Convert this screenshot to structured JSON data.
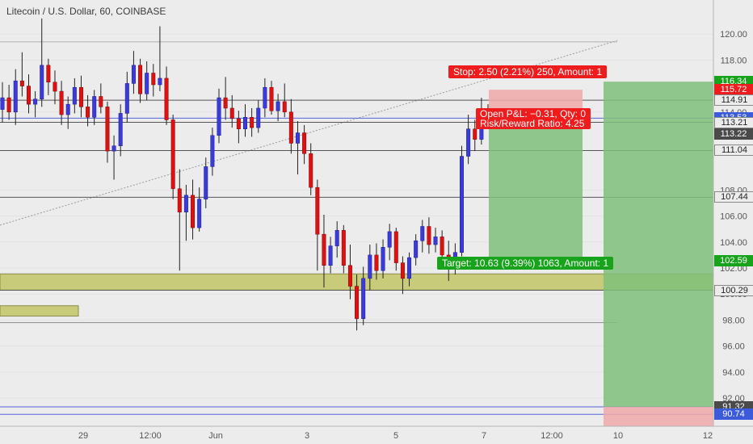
{
  "header": {
    "title": "Litecoin / U.S. Dollar, 60, COINBASE"
  },
  "chart_data": {
    "type": "candlestick",
    "symbol": "Litecoin / U.S. Dollar",
    "interval": "60",
    "exchange": "COINBASE",
    "ylim": [
      90.2,
      122.0
    ],
    "price_ticks": [
      "120.00",
      "118.00",
      "114.00",
      "108.00",
      "106.00",
      "104.00",
      "102.00",
      "100.00",
      "98.00",
      "96.00",
      "94.00",
      "92.00"
    ],
    "time_ticks": [
      "29",
      "12:00",
      "Jun",
      "3",
      "5",
      "7",
      "12:00",
      "10",
      "12"
    ],
    "price_tags": [
      {
        "text": "116.34",
        "price": 116.34,
        "bg": "#17a31b",
        "fg": "#ffffff"
      },
      {
        "text": "115.72",
        "price": 115.72,
        "bg": "#ee1c1c",
        "fg": "#ffffff"
      },
      {
        "text": "114.91",
        "price": 114.91,
        "bg": "#ececec",
        "fg": "#222222"
      },
      {
        "text": "113.53",
        "price": 113.53,
        "bg": "#3b5bdb",
        "fg": "#ffffff"
      },
      {
        "text": "15:28",
        "price": 112.58,
        "bg": "#3b5bdb",
        "fg": "#ffffff"
      },
      {
        "text": "113.21",
        "price": 113.21,
        "bg": "#ececec",
        "fg": "#222222"
      },
      {
        "text": "113.22",
        "price": 112.3,
        "bg": "#4a4a4a",
        "fg": "#ffffff"
      },
      {
        "text": "111.04",
        "price": 111.04,
        "bg": "#ececec",
        "fg": "#222222"
      },
      {
        "text": "107.44",
        "price": 107.44,
        "bg": "#ececec",
        "fg": "#222222"
      },
      {
        "text": "102.59",
        "price": 102.59,
        "bg": "#17a31b",
        "fg": "#ffffff"
      },
      {
        "text": "100.29",
        "price": 100.29,
        "bg": "#ececec",
        "fg": "#222222"
      },
      {
        "text": "91.32",
        "price": 91.32,
        "bg": "#4a4a4a",
        "fg": "#ffffff"
      },
      {
        "text": "90.74",
        "price": 90.74,
        "bg": "#3b5bdb",
        "fg": "#ffffff"
      }
    ],
    "horizontal_lines": [
      {
        "price": 114.91,
        "color": "#555555"
      },
      {
        "price": 113.53,
        "color": "#5566dd"
      },
      {
        "price": 113.21,
        "color": "#555555"
      },
      {
        "price": 111.04,
        "color": "#555555"
      },
      {
        "price": 107.44,
        "color": "#555555"
      },
      {
        "price": 100.29,
        "color": "#555555"
      },
      {
        "price": 91.32,
        "color": "#5566dd"
      },
      {
        "price": 90.74,
        "color": "#5566dd"
      }
    ],
    "support_zone": {
      "top": 101.55,
      "bottom": 100.3,
      "color": "#c8cc7a"
    },
    "position": {
      "entry": 113.21,
      "stop": 115.72,
      "target": 102.59,
      "stop_label": "Stop: 2.50 (2.21%) 250, Amount: 1",
      "pnl_label_1": "Open P&L: −0.31, Qty: 0",
      "pnl_label_2": "Risk/Reward Ratio: 4.25",
      "target_label": "Target: 10.63 (9.39%) 1063, Amount: 1",
      "profit_color": "#7fbf7a",
      "loss_color": "#f1a9a9"
    },
    "candles": [
      {
        "o": 114.2,
        "h": 116.3,
        "l": 113.2,
        "c": 115.1
      },
      {
        "o": 115.1,
        "h": 116.1,
        "l": 113.4,
        "c": 114.0
      },
      {
        "o": 114.0,
        "h": 117.3,
        "l": 113.0,
        "c": 116.4
      },
      {
        "o": 116.4,
        "h": 118.6,
        "l": 115.2,
        "c": 116.0
      },
      {
        "o": 116.0,
        "h": 116.9,
        "l": 113.9,
        "c": 114.6
      },
      {
        "o": 114.6,
        "h": 115.6,
        "l": 113.6,
        "c": 115.0
      },
      {
        "o": 115.0,
        "h": 121.2,
        "l": 114.4,
        "c": 117.6
      },
      {
        "o": 117.6,
        "h": 118.1,
        "l": 115.3,
        "c": 116.3
      },
      {
        "o": 116.3,
        "h": 117.2,
        "l": 114.6,
        "c": 115.6
      },
      {
        "o": 115.6,
        "h": 116.4,
        "l": 113.0,
        "c": 113.8
      },
      {
        "o": 113.8,
        "h": 115.2,
        "l": 112.7,
        "c": 114.6
      },
      {
        "o": 114.6,
        "h": 116.6,
        "l": 113.9,
        "c": 115.9
      },
      {
        "o": 115.9,
        "h": 116.8,
        "l": 113.6,
        "c": 114.4
      },
      {
        "o": 114.4,
        "h": 115.3,
        "l": 112.9,
        "c": 113.6
      },
      {
        "o": 113.6,
        "h": 115.7,
        "l": 113.0,
        "c": 115.2
      },
      {
        "o": 115.2,
        "h": 116.2,
        "l": 113.9,
        "c": 114.4
      },
      {
        "o": 114.4,
        "h": 114.8,
        "l": 110.1,
        "c": 111.0
      },
      {
        "o": 111.0,
        "h": 112.2,
        "l": 108.8,
        "c": 111.4
      },
      {
        "o": 111.4,
        "h": 114.6,
        "l": 110.6,
        "c": 113.9
      },
      {
        "o": 113.9,
        "h": 117.1,
        "l": 113.2,
        "c": 116.2
      },
      {
        "o": 116.2,
        "h": 118.7,
        "l": 115.4,
        "c": 117.6
      },
      {
        "o": 117.6,
        "h": 118.1,
        "l": 114.7,
        "c": 115.4
      },
      {
        "o": 115.4,
        "h": 117.9,
        "l": 114.9,
        "c": 117.0
      },
      {
        "o": 117.0,
        "h": 117.7,
        "l": 115.2,
        "c": 116.1
      },
      {
        "o": 116.1,
        "h": 120.6,
        "l": 115.6,
        "c": 116.6
      },
      {
        "o": 116.6,
        "h": 117.5,
        "l": 113.0,
        "c": 113.4
      },
      {
        "o": 113.4,
        "h": 113.8,
        "l": 107.3,
        "c": 108.1
      },
      {
        "o": 108.1,
        "h": 109.6,
        "l": 101.8,
        "c": 106.3
      },
      {
        "o": 106.3,
        "h": 108.4,
        "l": 104.1,
        "c": 107.6
      },
      {
        "o": 107.6,
        "h": 108.8,
        "l": 104.2,
        "c": 105.1
      },
      {
        "o": 105.1,
        "h": 108.2,
        "l": 104.8,
        "c": 107.3
      },
      {
        "o": 107.3,
        "h": 110.5,
        "l": 106.6,
        "c": 109.8
      },
      {
        "o": 109.8,
        "h": 112.8,
        "l": 109.1,
        "c": 112.2
      },
      {
        "o": 112.2,
        "h": 115.8,
        "l": 111.6,
        "c": 115.1
      },
      {
        "o": 115.1,
        "h": 116.7,
        "l": 113.4,
        "c": 114.3
      },
      {
        "o": 114.3,
        "h": 115.3,
        "l": 112.8,
        "c": 113.5
      },
      {
        "o": 113.5,
        "h": 114.1,
        "l": 111.6,
        "c": 112.7
      },
      {
        "o": 112.7,
        "h": 114.6,
        "l": 112.1,
        "c": 113.6
      },
      {
        "o": 113.6,
        "h": 114.3,
        "l": 112.1,
        "c": 112.8
      },
      {
        "o": 112.8,
        "h": 114.9,
        "l": 112.4,
        "c": 114.3
      },
      {
        "o": 114.3,
        "h": 116.6,
        "l": 113.6,
        "c": 115.9
      },
      {
        "o": 115.9,
        "h": 116.4,
        "l": 113.8,
        "c": 114.1
      },
      {
        "o": 114.1,
        "h": 115.4,
        "l": 113.3,
        "c": 114.8
      },
      {
        "o": 114.8,
        "h": 116.2,
        "l": 113.6,
        "c": 114.0
      },
      {
        "o": 114.0,
        "h": 115.0,
        "l": 110.8,
        "c": 111.6
      },
      {
        "o": 111.6,
        "h": 113.3,
        "l": 109.2,
        "c": 112.4
      },
      {
        "o": 112.4,
        "h": 113.0,
        "l": 110.0,
        "c": 110.8
      },
      {
        "o": 110.8,
        "h": 111.6,
        "l": 107.6,
        "c": 108.2
      },
      {
        "o": 108.2,
        "h": 108.8,
        "l": 101.8,
        "c": 104.6
      },
      {
        "o": 104.6,
        "h": 106.1,
        "l": 100.5,
        "c": 102.2
      },
      {
        "o": 102.2,
        "h": 104.4,
        "l": 101.6,
        "c": 103.7
      },
      {
        "o": 103.7,
        "h": 105.6,
        "l": 102.8,
        "c": 104.9
      },
      {
        "o": 104.9,
        "h": 105.3,
        "l": 101.6,
        "c": 102.2
      },
      {
        "o": 102.2,
        "h": 103.8,
        "l": 99.6,
        "c": 100.6
      },
      {
        "o": 100.6,
        "h": 101.5,
        "l": 97.2,
        "c": 98.1
      },
      {
        "o": 98.1,
        "h": 102.1,
        "l": 97.6,
        "c": 101.2
      },
      {
        "o": 101.2,
        "h": 103.8,
        "l": 100.3,
        "c": 103.0
      },
      {
        "o": 103.0,
        "h": 103.9,
        "l": 101.1,
        "c": 101.8
      },
      {
        "o": 101.8,
        "h": 104.2,
        "l": 101.2,
        "c": 103.6
      },
      {
        "o": 103.6,
        "h": 105.4,
        "l": 102.6,
        "c": 104.8
      },
      {
        "o": 104.8,
        "h": 105.1,
        "l": 101.8,
        "c": 102.4
      },
      {
        "o": 102.4,
        "h": 102.9,
        "l": 100.0,
        "c": 101.2
      },
      {
        "o": 101.2,
        "h": 103.2,
        "l": 100.6,
        "c": 102.8
      },
      {
        "o": 102.8,
        "h": 104.6,
        "l": 102.2,
        "c": 104.1
      },
      {
        "o": 104.1,
        "h": 105.7,
        "l": 103.2,
        "c": 105.2
      },
      {
        "o": 105.2,
        "h": 105.9,
        "l": 103.1,
        "c": 103.8
      },
      {
        "o": 103.8,
        "h": 105.1,
        "l": 103.2,
        "c": 104.4
      },
      {
        "o": 104.4,
        "h": 104.9,
        "l": 102.3,
        "c": 103.0
      },
      {
        "o": 103.0,
        "h": 104.1,
        "l": 101.0,
        "c": 102.4
      },
      {
        "o": 102.4,
        "h": 103.9,
        "l": 101.5,
        "c": 103.2
      },
      {
        "o": 103.2,
        "h": 111.4,
        "l": 102.9,
        "c": 110.6
      },
      {
        "o": 110.6,
        "h": 113.8,
        "l": 110.0,
        "c": 112.7
      },
      {
        "o": 112.7,
        "h": 113.4,
        "l": 111.0,
        "c": 111.9
      },
      {
        "o": 111.9,
        "h": 115.1,
        "l": 111.5,
        "c": 113.9
      },
      {
        "o": 113.9,
        "h": 114.6,
        "l": 112.9,
        "c": 113.2
      }
    ]
  }
}
